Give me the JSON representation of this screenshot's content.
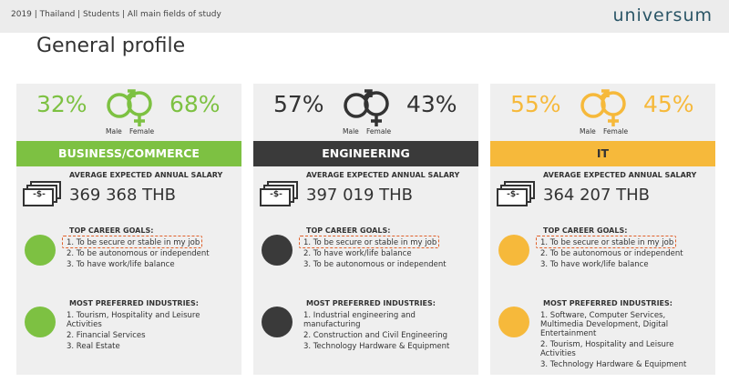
{
  "header": {
    "breadcrumb": "2019 | Thailand | Students | All main fields of study",
    "logo": "universum"
  },
  "title": "General profile",
  "icon_symbol": "-$-",
  "panels": [
    {
      "male_pct": "32%",
      "female_pct": "68%",
      "male_label": "Male",
      "female_label": "Female",
      "heading": "BUSINESS/COMMERCE",
      "salary_label": "AVERAGE EXPECTED ANNUAL SALARY",
      "salary": "369 368 THB",
      "goals_label": "TOP CAREER GOALS:",
      "goals": [
        "1. To be secure or stable in my job",
        "2. To be autonomous or independent",
        "3. To have work/life balance"
      ],
      "industries_label": "MOST PREFERRED INDUSTRIES:",
      "industries": [
        "1. Tourism, Hospitality and Leisure Activities",
        "2. Financial Services",
        "3. Real Estate"
      ]
    },
    {
      "male_pct": "57%",
      "female_pct": "43%",
      "male_label": "Male",
      "female_label": "Female",
      "heading": "ENGINEERING",
      "salary_label": "AVERAGE EXPECTED ANNUAL SALARY",
      "salary": "397 019 THB",
      "goals_label": "TOP CAREER GOALS:",
      "goals": [
        "1. To be secure or stable in my job",
        "2. To have work/life balance",
        "3. To be autonomous or independent"
      ],
      "industries_label": "MOST PREFERRED INDUSTRIES:",
      "industries": [
        "1. Industrial engineering and manufacturing",
        "2. Construction and Civil Engineering",
        "3. Technology Hardware & Equipment"
      ]
    },
    {
      "male_pct": "55%",
      "female_pct": "45%",
      "male_label": "Male",
      "female_label": "Female",
      "heading": "IT",
      "salary_label": "AVERAGE EXPECTED ANNUAL SALARY",
      "salary": "364 207 THB",
      "goals_label": "TOP CAREER GOALS:",
      "goals": [
        "1. To be secure or stable in my job",
        "2. To be autonomous or independent",
        "3. To have work/life balance"
      ],
      "industries_label": "MOST PREFERRED INDUSTRIES:",
      "industries": [
        "1. Software, Computer Services, Multimedia Development, Digital Entertainment",
        "2. Tourism, Hospitality and Leisure Activities",
        "3. Technology Hardware & Equipment"
      ]
    }
  ]
}
